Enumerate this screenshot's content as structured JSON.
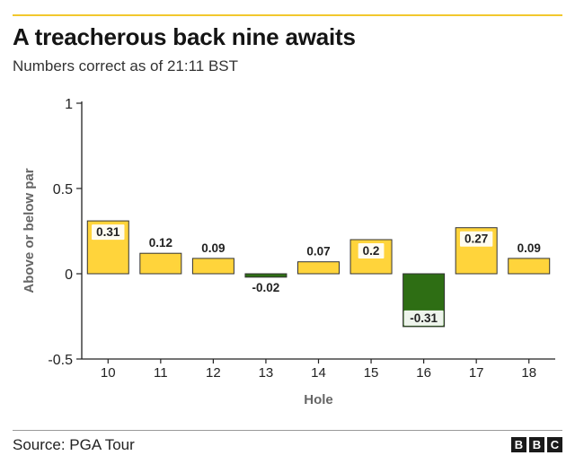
{
  "title": "A treacherous back nine awaits",
  "subtitle": "Numbers correct as of 21:11 BST",
  "source": "Source: PGA Tour",
  "logo_text": "BBC",
  "colors": {
    "accent_rule": "#f2c82d",
    "positive": "#ffd43b",
    "negative": "#2e6e14"
  },
  "chart_data": {
    "type": "bar",
    "categories": [
      "10",
      "11",
      "12",
      "13",
      "14",
      "15",
      "16",
      "17",
      "18"
    ],
    "values": [
      0.31,
      0.12,
      0.09,
      -0.02,
      0.07,
      0.2,
      -0.31,
      0.27,
      0.09
    ],
    "value_labels": [
      "0.31",
      "0.12",
      "0.09",
      "-0.02",
      "0.07",
      "0.2",
      "-0.31",
      "0.27",
      "0.09"
    ],
    "xlabel": "Hole",
    "ylabel": "Above or below par",
    "ylim": [
      -0.5,
      1
    ],
    "yticks": [
      1,
      0.5,
      0,
      -0.5
    ],
    "ytick_labels": [
      "1",
      "0.5",
      "0",
      "-0.5"
    ],
    "grid": false,
    "legend": false
  }
}
